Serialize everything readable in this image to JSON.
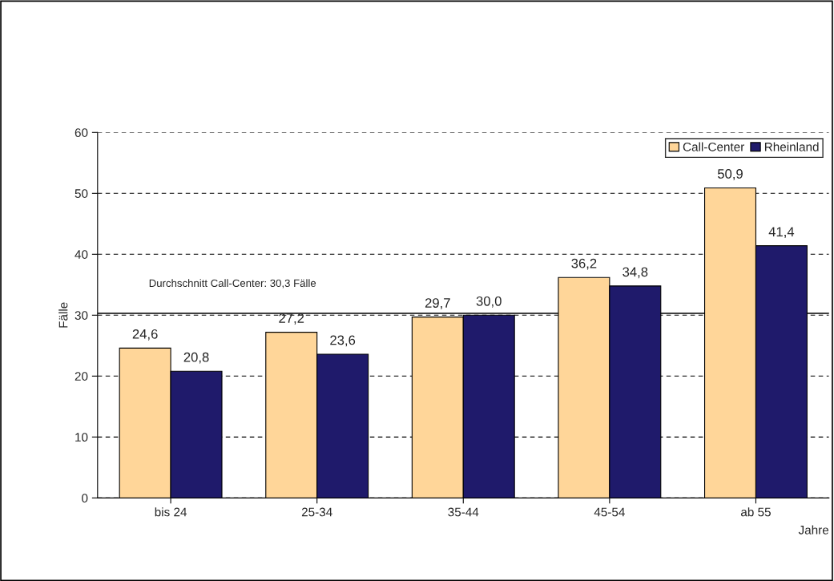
{
  "chart_data": {
    "type": "bar",
    "categories": [
      "bis 24",
      "25-34",
      "35-44",
      "45-54",
      "ab 55"
    ],
    "series": [
      {
        "name": "Call-Center",
        "color": "#ffd699",
        "values": [
          24.6,
          27.2,
          29.7,
          36.2,
          50.9
        ],
        "value_labels": [
          "24,6",
          "27,2",
          "29,7",
          "36,2",
          "50,9"
        ]
      },
      {
        "name": "Rheinland",
        "color": "#1f1a6b",
        "values": [
          20.8,
          23.6,
          30.0,
          34.8,
          41.4
        ],
        "value_labels": [
          "20,8",
          "23,6",
          "30,0",
          "34,8",
          "41,4"
        ]
      }
    ],
    "xlabel": "Jahre",
    "ylabel": "Fälle",
    "ylim": [
      0,
      60
    ],
    "yticks": [
      0,
      10,
      20,
      30,
      40,
      50,
      60
    ],
    "grid": "y",
    "legend": "top right",
    "ref_lines": [
      {
        "axis": "y",
        "value": 30.3,
        "label": "Durchschnitt Call-Center: 30,3 Fälle",
        "color": "#000000",
        "line_style": "solid"
      }
    ]
  }
}
